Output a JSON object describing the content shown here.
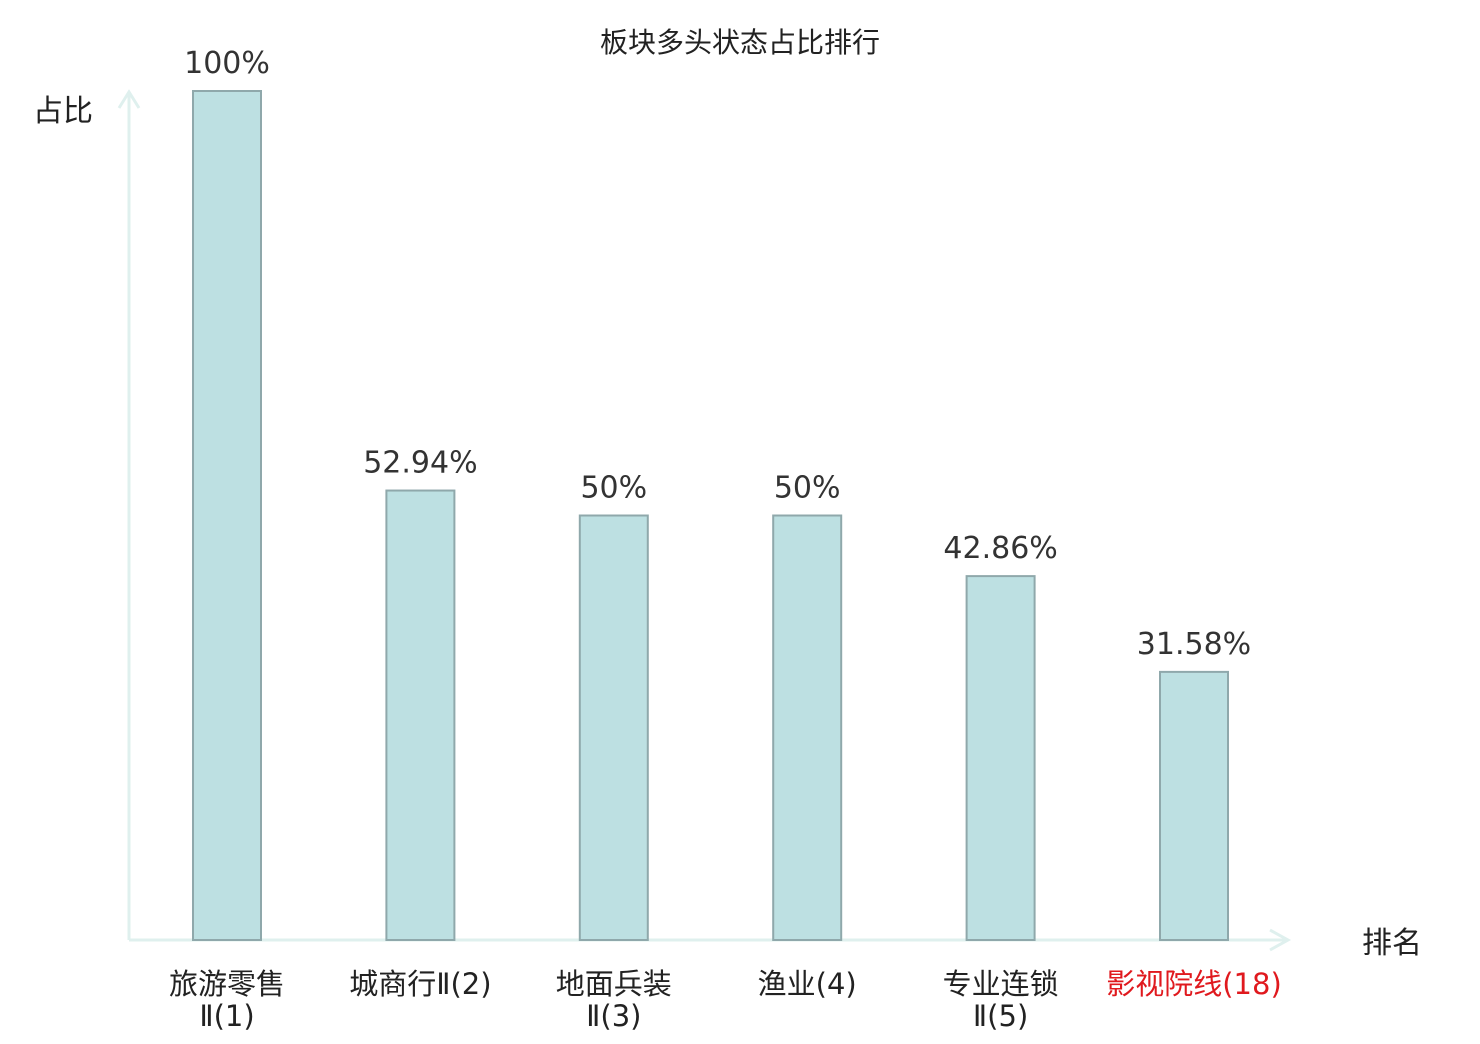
{
  "chart_data": {
    "type": "bar",
    "title": "板块多头状态占比排行",
    "ylabel": "占比",
    "xlabel": "排名",
    "categories": [
      {
        "lines": [
          "旅游零售",
          "Ⅱ(1)"
        ]
      },
      {
        "lines": [
          "城商行Ⅱ(2)"
        ]
      },
      {
        "lines": [
          "地面兵装",
          "Ⅱ(3)"
        ]
      },
      {
        "lines": [
          "渔业(4)"
        ]
      },
      {
        "lines": [
          "专业连锁",
          "Ⅱ(5)"
        ]
      },
      {
        "lines": [
          "影视院线(18)"
        ],
        "highlight": true
      }
    ],
    "values": [
      100,
      52.94,
      50,
      50,
      42.86,
      31.58
    ],
    "value_labels": [
      "100%",
      "52.94%",
      "50%",
      "50%",
      "42.86%",
      "31.58%"
    ],
    "ylim": [
      0,
      100
    ],
    "grid": false,
    "legend": "none"
  },
  "colors": {
    "bar_fill": "#bde0e2",
    "bar_stroke": "#8fa8ab",
    "axis": "#dff0ee",
    "text": "#333333",
    "label_text": "#222222",
    "highlight": "#e0191e"
  }
}
